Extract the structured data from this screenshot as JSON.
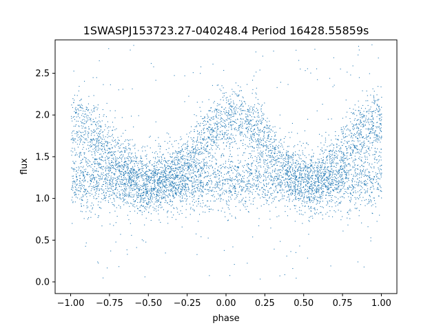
{
  "chart_data": {
    "type": "scatter",
    "title": "1SWASPJ153723.27-040248.4 Period 16428.55859s",
    "xlabel": "phase",
    "ylabel": "flux",
    "xlim": [
      -1.1,
      1.1
    ],
    "ylim": [
      -0.14,
      2.9
    ],
    "xticks": [
      -1.0,
      -0.75,
      -0.5,
      -0.25,
      0.0,
      0.25,
      0.5,
      0.75,
      1.0
    ],
    "xtick_labels": [
      "−1.00",
      "−0.75",
      "−0.50",
      "−0.25",
      "0.00",
      "0.25",
      "0.50",
      "0.75",
      "1.00"
    ],
    "yticks": [
      0.0,
      0.5,
      1.0,
      1.5,
      2.0,
      2.5
    ],
    "ytick_labels": [
      "0.0",
      "0.5",
      "1.0",
      "1.5",
      "2.0",
      "2.5"
    ],
    "grid": false,
    "marker_color": "#1f77b4",
    "x_range": [
      -1.0,
      1.0
    ],
    "y_range": [
      0.0,
      2.85
    ],
    "baseline_flux": 1.2,
    "maxima": [
      {
        "phase": -1.0,
        "flux": 1.9
      },
      {
        "phase": 0.05,
        "flux": 1.95
      },
      {
        "phase": 1.0,
        "flux": 1.9
      }
    ],
    "minima": [
      {
        "phase": -0.45,
        "flux": 1.2
      },
      {
        "phase": 0.55,
        "flux": 1.2
      }
    ]
  }
}
